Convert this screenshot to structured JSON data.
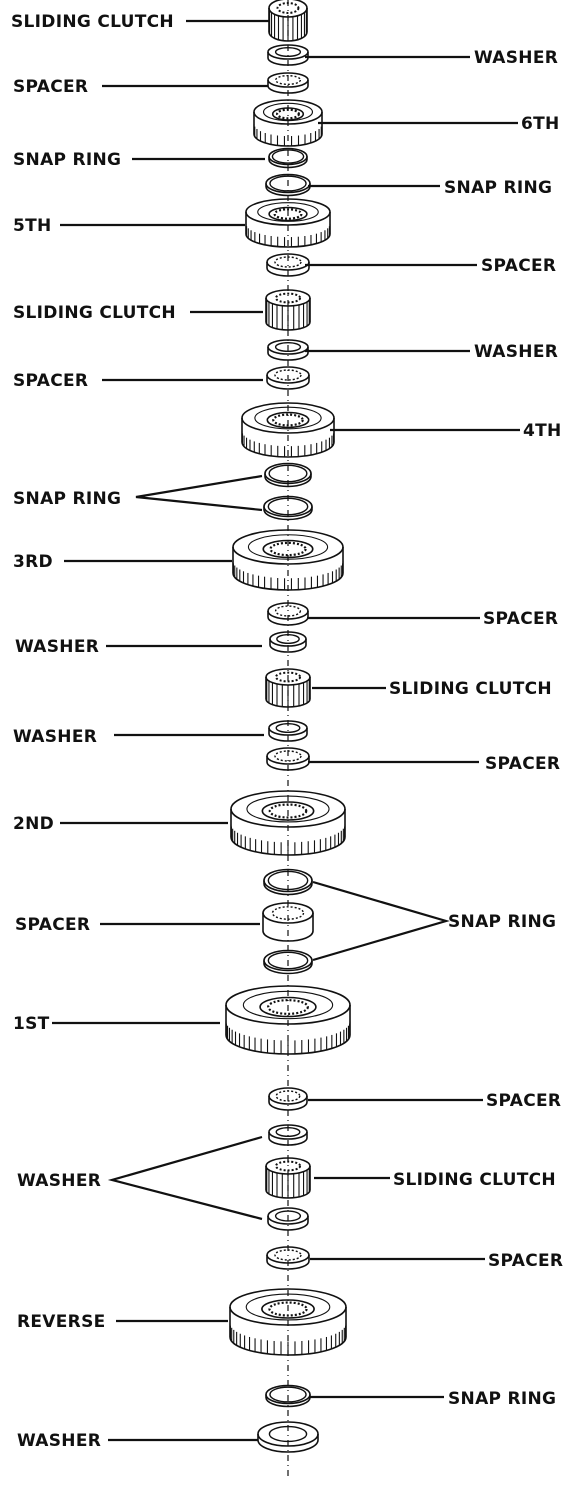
{
  "labels": {
    "l_sliding_clutch_1": "SLIDING CLUTCH",
    "r_washer_1": "WASHER",
    "l_spacer_1": "SPACER",
    "r_6th": "6TH",
    "l_snap_ring_1": "SNAP RING",
    "r_snap_ring_1": "SNAP RING",
    "l_5th": "5TH",
    "r_spacer_1": "SPACER",
    "l_sliding_clutch_2": "SLIDING CLUTCH",
    "r_washer_2": "WASHER",
    "l_spacer_2": "SPACER",
    "r_4th": "4TH",
    "l_snap_ring_2": "SNAP RING",
    "l_3rd": "3RD",
    "r_spacer_2": "SPACER",
    "l_washer_1": "WASHER",
    "r_sliding_clutch_1": "SLIDING CLUTCH",
    "l_washer_2": "WASHER",
    "r_spacer_3": "SPACER",
    "l_2nd": "2ND",
    "l_spacer_3": "SPACER",
    "r_snap_ring_2": "SNAP RING",
    "l_1st": "1ST",
    "r_spacer_4": "SPACER",
    "l_washer_3": "WASHER",
    "r_sliding_clutch_2": "SLIDING CLUTCH",
    "r_spacer_5": "SPACER",
    "l_reverse": "REVERSE",
    "r_snap_ring_3": "SNAP RING",
    "l_washer_4": "WASHER"
  },
  "parts": [
    "sliding-clutch",
    "washer",
    "spacer",
    "gear-6th",
    "snap-ring",
    "snap-ring",
    "gear-5th",
    "spacer",
    "sliding-clutch",
    "washer",
    "spacer",
    "gear-4th",
    "snap-ring",
    "snap-ring",
    "gear-3rd",
    "spacer",
    "washer",
    "sliding-clutch",
    "washer",
    "spacer",
    "gear-2nd",
    "snap-ring",
    "spacer",
    "snap-ring",
    "gear-1st",
    "spacer",
    "washer",
    "sliding-clutch",
    "washer",
    "spacer",
    "gear-reverse",
    "snap-ring",
    "washer"
  ]
}
